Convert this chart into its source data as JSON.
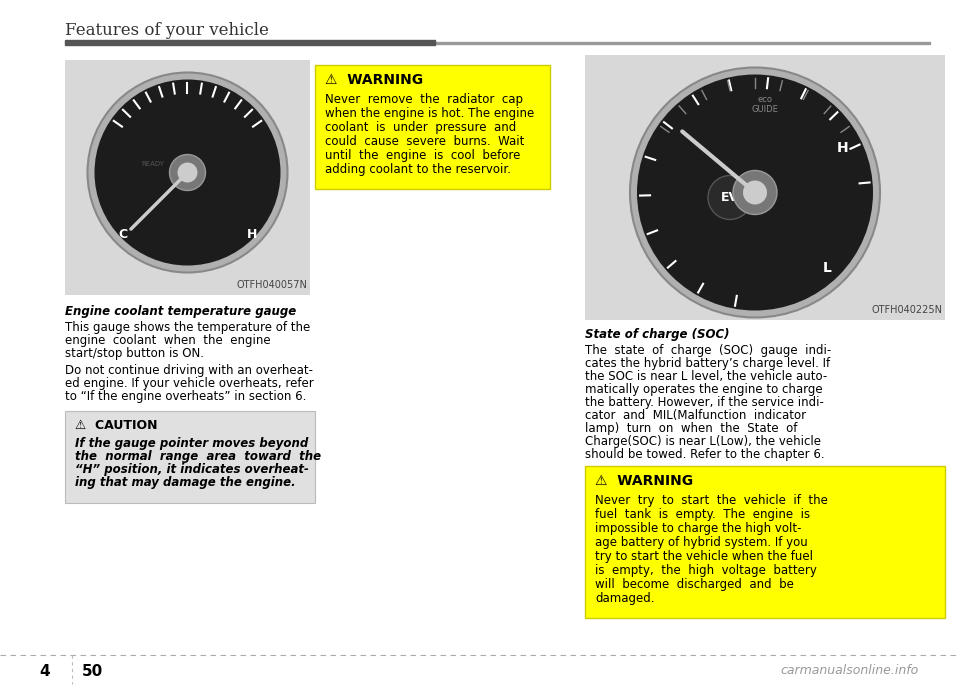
{
  "page_title": "Features of your vehicle",
  "page_number_left": "4",
  "page_number_right": "50",
  "bg_color": "#ffffff",
  "title_bar_dark": "#555555",
  "title_bar_light": "#999999",
  "left_image_label": "OTFH040057N",
  "right_image_label": "OTFH040225N",
  "left_bold_caption": "Engine coolant temperature gauge",
  "left_body1_lines": [
    "This gauge shows the temperature of the",
    "engine  coolant  when  the  engine",
    "start/stop button is ON."
  ],
  "left_body2_lines": [
    "Do not continue driving with an overheat-",
    "ed engine. If your vehicle overheats, refer",
    "to “If the engine overheats” in section 6."
  ],
  "caution_title": "⚠  CAUTION",
  "caution_lines": [
    "If the gauge pointer moves beyond",
    "the  normal  range  area  toward  the",
    "“H” position, it indicates overheat-",
    "ing that may damage the engine."
  ],
  "caution_bg": "#e0e0e0",
  "caution_border": "#bbbbbb",
  "warning1_title": "⚠  WARNING",
  "warning1_lines": [
    "Never  remove  the  radiator  cap",
    "when the engine is hot. The engine",
    "coolant  is  under  pressure  and",
    "could  cause  severe  burns.  Wait",
    "until  the  engine  is  cool  before",
    "adding coolant to the reservoir."
  ],
  "warning1_bg": "#ffff00",
  "warning1_border": "#cccc00",
  "right_bold_caption": "State of charge (SOC)",
  "right_body_lines": [
    "The  state  of  charge  (SOC)  gauge  indi-",
    "cates the hybrid battery’s charge level. If",
    "the SOC is near L level, the vehicle auto-",
    "matically operates the engine to charge",
    "the battery. However, if the service indi-",
    "cator  and  MIL(Malfunction  indicator",
    "lamp)  turn  on  when  the  State  of",
    "Charge(SOC) is near L(Low), the vehicle",
    "should be towed. Refer to the chapter 6."
  ],
  "warning2_title": "⚠  WARNING",
  "warning2_lines": [
    "Never  try  to  start  the  vehicle  if  the",
    "fuel  tank  is  empty.  The  engine  is",
    "impossible to charge the high volt-",
    "age battery of hybrid system. If you",
    "try to start the vehicle when the fuel",
    "is  empty,  the  high  voltage  battery",
    "will  become  discharged  and  be",
    "damaged."
  ],
  "warning2_bg": "#ffff00",
  "warning2_border": "#cccc00",
  "footer_dash_color": "#aaaaaa",
  "watermark": "carmanualsonline.info"
}
